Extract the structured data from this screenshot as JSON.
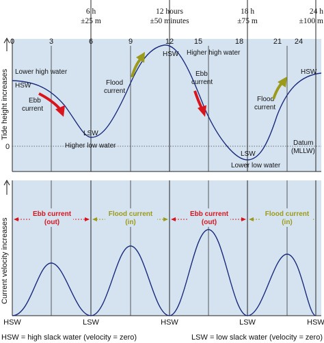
{
  "colors": {
    "panel_bg": "#d5e3f1",
    "curve": "#1a2a7a",
    "ebb_red": "#d8141c",
    "flood_olive": "#9b9a1a"
  },
  "top_labels": {
    "h6_a": "6 h",
    "h6_b": "±25 m",
    "h12_a": "12 hours",
    "h12_b": "±50 minutes",
    "h18_a": "18 h",
    "h18_b": "±75 m",
    "h24_a": "24 h",
    "h24_b": "±100 m"
  },
  "x_ticks": [
    "0",
    "3",
    "6",
    "9",
    "12",
    "15",
    "18",
    "21",
    "24"
  ],
  "top_panel": {
    "y_axis_label": "Tide height  increases",
    "zero_label": "0",
    "labels": {
      "lower_high_water": "Lower high water",
      "hsw_left": "HSW",
      "ebb_current_1a": "Ebb",
      "ebb_current_1b": "current",
      "lsw_1": "LSW",
      "higher_low_water": "Higher low water",
      "flood_current_1a": "Flood",
      "flood_current_1b": "current",
      "hsw_mid": "HSW",
      "higher_high_water": "Higher high water",
      "ebb_current_2a": "Ebb",
      "ebb_current_2b": "current",
      "lsw_2": "LSW",
      "lower_low_water": "Lower low water",
      "flood_current_2a": "Flood",
      "flood_current_2b": "current",
      "hsw_right": "HSW",
      "datum_a": "Datum",
      "datum_b": "(MLLW)"
    }
  },
  "bottom_panel": {
    "y_axis_label": "Current velocity increases",
    "ebb_1a": "Ebb current",
    "ebb_1b": "(out)",
    "flood_1a": "Flood current",
    "flood_1b": "(in)",
    "ebb_2a": "Ebb current",
    "ebb_2b": "(out)",
    "flood_2a": "Flood current",
    "flood_2b": "(in)"
  },
  "bottom_axis": [
    "HSW",
    "LSW",
    "HSW",
    "LSW",
    "HSW"
  ],
  "footer": {
    "left": "HSW = high slack water (velocity = zero)",
    "right": "LSW = low slack water (velocity = zero)"
  }
}
